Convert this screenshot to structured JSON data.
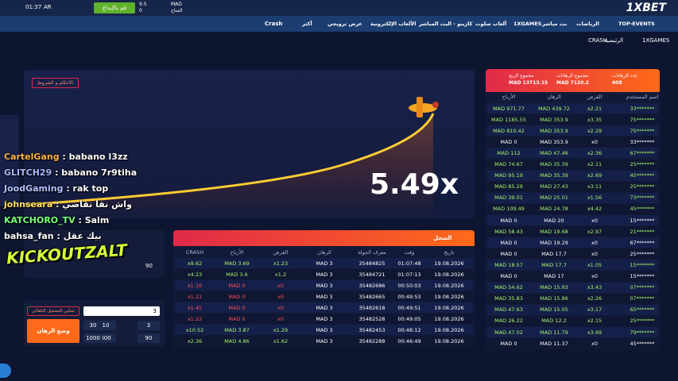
{
  "header": {
    "logo": "1XBET",
    "time": "01:37",
    "lang": "AR",
    "deposit": "قم بالإيداع",
    "currency": "MAD",
    "balance": "9.5",
    "bonus": "0",
    "balance_label": "المتاح",
    "nav": [
      "TOP-EVENTS",
      "الرياضات",
      "بث مباشر",
      "1XGAMES",
      "ألعاب سلوت",
      "كازينو - البث المباشر",
      "الألعاب الإلكترونية",
      "عرض ترويجي",
      "أكثر"
    ],
    "game_tag": "Crash"
  },
  "breadcrumb": [
    "1XGAMES",
    "الرئيسية",
    "CRASH"
  ],
  "game": {
    "terms": "الأحكام و الشروط",
    "multiplier": "5.49x"
  },
  "stats": {
    "labels": [
      "عدد الرهانات",
      "مجموع الرهانات",
      "مجموع الربح"
    ],
    "values": [
      "408",
      "MAD 7120.2",
      "MAD 13713.15"
    ],
    "columns": [
      "اسم المستخدم",
      "القرض",
      "الرهان",
      "الأرباح"
    ],
    "rows": [
      [
        "33*******",
        "x2.21",
        "MAD 439.72",
        "MAD 971.77"
      ],
      [
        "75*******",
        "x3.35",
        "MAD 353.9",
        "MAD 1185.55"
      ],
      [
        "75*******",
        "x2.29",
        "MAD 353.9",
        "MAD 810.42"
      ],
      [
        "33*******",
        "x0",
        "MAD 353.9",
        "MAD 0"
      ],
      [
        "67*******",
        "x2.36",
        "MAD 47.46",
        "MAD 112"
      ],
      [
        "25*******",
        "x2.11",
        "MAD 35.39",
        "MAD 74.67"
      ],
      [
        "45*******",
        "x2.69",
        "MAD 35.39",
        "MAD 95.19"
      ],
      [
        "25*******",
        "x3.11",
        "MAD 27.43",
        "MAD 85.29"
      ],
      [
        "73*******",
        "x1.56",
        "MAD 25.01",
        "MAD 39.01"
      ],
      [
        "45*******",
        "x4.42",
        "MAD 24.78",
        "MAD 109.49"
      ],
      [
        "15*******",
        "x0",
        "MAD 20",
        "MAD 0"
      ],
      [
        "21*******",
        "x2.97",
        "MAD 19.68",
        "MAD 58.43"
      ],
      [
        "67*******",
        "x0",
        "MAD 19.29",
        "MAD 0"
      ],
      [
        "25*******",
        "x0",
        "MAD 17.7",
        "MAD 0"
      ],
      [
        "15*******",
        "x1.05",
        "MAD 17.7",
        "MAD 18.57"
      ],
      [
        "15*******",
        "x0",
        "MAD 17",
        "MAD 0"
      ],
      [
        "07*******",
        "x3.43",
        "MAD 15.93",
        "MAD 54.62"
      ],
      [
        "07*******",
        "x2.26",
        "MAD 15.86",
        "MAD 35.83"
      ],
      [
        "65*******",
        "x3.17",
        "MAD 15.05",
        "MAD 47.63"
      ],
      [
        "25*******",
        "x2.15",
        "MAD 12.2",
        "MAD 26.22"
      ],
      [
        "79*******",
        "x3.99",
        "MAD 11.79",
        "MAD 47.02"
      ],
      [
        "45*******",
        "x0",
        "MAD 11.37",
        "MAD 0"
      ]
    ]
  },
  "history": {
    "title": "السجل",
    "columns": [
      "تاريخ",
      "وقت",
      "معرف الجولة",
      "الرهان",
      "القرض",
      "الأرباح",
      "CRASH"
    ],
    "rows": [
      [
        "19.08.2026",
        "01:07:48",
        "35484825",
        "MAD 3",
        "x1.23",
        "MAD 3.69",
        "x9.62"
      ],
      [
        "19.08.2026",
        "01:07:13",
        "35484721",
        "MAD 3",
        "x1.2",
        "MAD 3.6",
        "x4.23"
      ],
      [
        "19.08.2026",
        "00:50:03",
        "35482686",
        "MAD 3",
        "x0",
        "MAD 0",
        "x1.16"
      ],
      [
        "19.08.2026",
        "00:49:53",
        "35482665",
        "MAD 3",
        "x0",
        "MAD 0",
        "x1.21"
      ],
      [
        "19.08.2026",
        "00:49:51",
        "35482618",
        "MAD 3",
        "x0",
        "MAD 0",
        "x1.45"
      ],
      [
        "19.08.2026",
        "00:49:05",
        "35482528",
        "MAD 3",
        "x0",
        "MAD 0",
        "x1.22"
      ],
      [
        "19.08.2026",
        "00:48:12",
        "35482453",
        "MAD 3",
        "x1.29",
        "MAD 3.87",
        "x10.52"
      ],
      [
        "19.08.2026",
        "00:46:49",
        "35482288",
        "MAD 3",
        "x1.62",
        "MAD 4.86",
        "x2.36"
      ]
    ]
  },
  "bet": {
    "top_value": "90",
    "amount": "3",
    "chips": [
      "3",
      "10",
      "30",
      "90",
      "300",
      "1000"
    ],
    "auto": "تمكين التسجيل التلقائي",
    "place": "وضع الرهان"
  },
  "chat": [
    {
      "user": "CartelGang",
      "text": ": babano l3zz",
      "color": "#ffb347"
    },
    {
      "user": "GLITCH29",
      "text": ": babano 7r9tiha",
      "color": "#a8b8ff"
    },
    {
      "user": "JoodGaming",
      "text": ": rak top",
      "color": "#b0c4ff"
    },
    {
      "user": "johnseara",
      "text": ": واش نقا نقاضي",
      "color": "#ffe066"
    },
    {
      "user": "KATCHORO_TV",
      "text": ": Salm",
      "color": "#7cff7c"
    },
    {
      "user": "bahsa_fan",
      "text": ": بيك عقل",
      "color": "#ffffff"
    }
  ],
  "overlay": "KICKOUTZALT"
}
